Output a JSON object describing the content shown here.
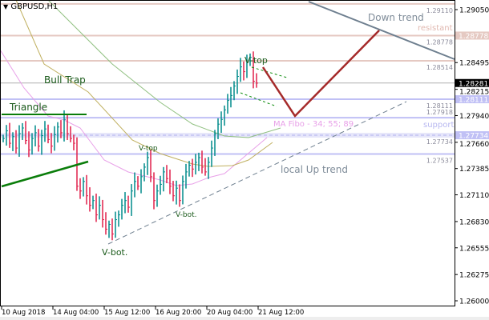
{
  "window": {
    "title": "GBPUSD,H1",
    "menu_icon": "triangle-down-icon"
  },
  "annotations": {
    "bull_trap": "Bull Trap",
    "triangle": "Triangle",
    "v_top_1": "V-top",
    "v_top_2": "V-top",
    "v_bot_1": "V-bot.",
    "v_bot_2": "V-bot.",
    "down_trend": "Down trend",
    "resistant": "resistant",
    "support": "support",
    "ma_fibo": "MA Fibo - 34; 55; 89",
    "local_up_trend": "local Up trend"
  },
  "colors": {
    "up_bar": "#008b8b",
    "down_bar": "#e0204a",
    "resistance": "#e5c9c2",
    "support": "#c0c0f5",
    "down_trend": "#6e7f8f",
    "projection": "#a52a2a",
    "triangle": "#0a7d0a",
    "ma_fast": "#e8a0e8",
    "ma_mid": "#c0b060",
    "ma_slow": "#90c080"
  },
  "chart_data": {
    "type": "ohlc",
    "symbol": "GBPUSD",
    "timeframe": "H1",
    "ylim": [
      1.26,
      1.2911
    ],
    "y_ticks": [
      "1.29050",
      "1.28495",
      "1.28215",
      "1.27940",
      "1.27660",
      "1.27385",
      "1.27110",
      "1.26830",
      "1.26555",
      "1.26275",
      "1.26000"
    ],
    "x_ticks": [
      "10 Aug 2018",
      "14 Aug 04:00",
      "15 Aug 12:00",
      "16 Aug 20:00",
      "20 Aug 04:00",
      "21 Aug 12:00"
    ],
    "current_price": "1.28281",
    "levels": [
      {
        "label": "1.29110",
        "value": 1.2911,
        "kind": "resistance"
      },
      {
        "label": "1.28778",
        "value": 1.28778,
        "kind": "resistance",
        "tagged": true
      },
      {
        "label": "1.28514",
        "value": 1.28514,
        "kind": "resistance"
      },
      {
        "label": "1.28111",
        "value": 1.28111,
        "kind": "support",
        "tagged": true
      },
      {
        "label": "1.27918",
        "value": 1.27918,
        "kind": "support"
      },
      {
        "label": "1.27734",
        "value": 1.27734,
        "kind": "support",
        "tagged": true,
        "dashed": true
      },
      {
        "label": "1.27537",
        "value": 1.27537,
        "kind": "support"
      }
    ],
    "closes": [
      1.277,
      1.2778,
      1.2765,
      1.2772,
      1.276,
      1.2775,
      1.2781,
      1.2768,
      1.2758,
      1.277,
      1.2776,
      1.2762,
      1.2773,
      1.278,
      1.2769,
      1.2762,
      1.2774,
      1.2782,
      1.2776,
      1.279,
      1.2775,
      1.277,
      1.2765,
      1.272,
      1.2715,
      1.2725,
      1.271,
      1.27,
      1.2705,
      1.269,
      1.27,
      1.2685,
      1.2675,
      1.268,
      1.267,
      1.2685,
      1.269,
      1.27,
      1.2705,
      1.2698,
      1.2715,
      1.2725,
      1.272,
      1.273,
      1.274,
      1.275,
      1.273,
      1.2705,
      1.2715,
      1.2722,
      1.2735,
      1.2728,
      1.272,
      1.271,
      1.2718,
      1.2705,
      1.2725,
      1.2735,
      1.2742,
      1.2738,
      1.2745,
      1.275,
      1.274,
      1.2735,
      1.2745,
      1.276,
      1.2775,
      1.2785,
      1.279,
      1.28,
      1.281,
      1.2815,
      1.2825,
      1.2835,
      1.2845,
      1.284,
      1.285,
      1.2855,
      1.283,
      1.2828
    ]
  }
}
